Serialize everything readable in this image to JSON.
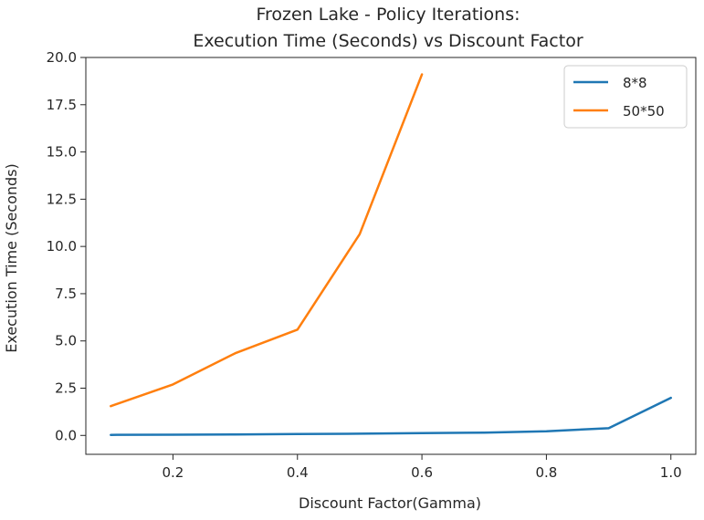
{
  "chart_data": {
    "type": "line",
    "title_lines": [
      "Frozen Lake - Policy Iterations:",
      "Execution Time (Seconds) vs Discount Factor"
    ],
    "xlabel": "Discount Factor(Gamma)",
    "ylabel": "Execution Time (Seconds)",
    "xlim": [
      0.06,
      1.04
    ],
    "ylim": [
      -1.0,
      20.0
    ],
    "xticks": [
      "0.2",
      "0.4",
      "0.6",
      "0.8",
      "1.0"
    ],
    "yticks": [
      "0.0",
      "2.5",
      "5.0",
      "7.5",
      "10.0",
      "12.5",
      "15.0",
      "17.5",
      "20.0"
    ],
    "grid": false,
    "legend_position": "top-right",
    "series": [
      {
        "name": "8*8",
        "color": "#1f77b4",
        "x": [
          0.1,
          0.2,
          0.3,
          0.4,
          0.5,
          0.6,
          0.7,
          0.8,
          0.9,
          1.0
        ],
        "y": [
          0.03,
          0.04,
          0.05,
          0.07,
          0.09,
          0.12,
          0.15,
          0.22,
          0.38,
          1.99
        ]
      },
      {
        "name": "50*50",
        "color": "#ff7f0e",
        "x": [
          0.1,
          0.2,
          0.3,
          0.4,
          0.5,
          0.6
        ],
        "y": [
          1.55,
          2.7,
          4.35,
          5.6,
          10.65,
          19.1
        ]
      }
    ]
  }
}
